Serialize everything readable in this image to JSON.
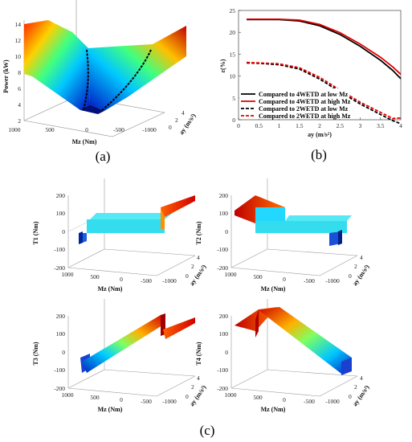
{
  "panel_labels": {
    "a": "(a)",
    "b": "(b)",
    "c": "(c)"
  },
  "chart_data": [
    {
      "id": "a",
      "type": "surface",
      "zlabel": "Power (kW)",
      "xlabel": "Mz (Nm)",
      "ylabel": "ay (m/s²)",
      "zticks": [
        "14",
        "12",
        "10",
        "8",
        "6",
        "4",
        "2"
      ],
      "xticks": [
        "1000",
        "500",
        "0",
        "-500",
        "-1000"
      ],
      "yticks": [
        "0",
        "2",
        "4"
      ],
      "zlim": [
        2,
        14
      ],
      "xlim": [
        1000,
        -1000
      ],
      "ylim": [
        0,
        4
      ],
      "colormap": "jet",
      "notes": "surface with black dashed optimal curves at 0 and -500"
    },
    {
      "id": "b",
      "type": "line",
      "ylabel": "ε(%)",
      "xlabel": "ay (m/s²)",
      "ylim": [
        0,
        25
      ],
      "xlim": [
        0,
        4
      ],
      "yticks": [
        0,
        5,
        10,
        15,
        20,
        25
      ],
      "xticks": [
        0,
        0.5,
        1,
        1.5,
        2,
        2.5,
        3,
        3.5,
        4
      ],
      "x": [
        0.2,
        0.5,
        1.0,
        1.5,
        2.0,
        2.5,
        3.0,
        3.5,
        3.8,
        4.0
      ],
      "series": [
        {
          "name": "Compared to 4WETD at low Mz",
          "color": "#000000",
          "dash": false,
          "values": [
            22.9,
            22.9,
            22.9,
            22.6,
            21.5,
            19.5,
            16.8,
            13.6,
            11.3,
            9.4
          ]
        },
        {
          "name": "Compared to 4WETD at high Mz",
          "color": "#e00000",
          "dash": false,
          "values": [
            23.0,
            23.0,
            23.0,
            22.8,
            21.8,
            19.9,
            17.3,
            14.3,
            12.1,
            10.4
          ]
        },
        {
          "name": "Compared to 2WETD at low Mz",
          "color": "#000000",
          "dash": true,
          "values": [
            13.0,
            12.9,
            12.6,
            11.6,
            9.3,
            6.4,
            3.6,
            1.2,
            -0.2,
            -0.9
          ]
        },
        {
          "name": "Compared to 2WETD at high Mz",
          "color": "#e00000",
          "dash": true,
          "values": [
            13.1,
            13.0,
            12.8,
            11.9,
            9.7,
            6.8,
            4.0,
            1.7,
            0.3,
            0.4
          ]
        }
      ],
      "legend_position": "bottom-left"
    },
    {
      "id": "c1",
      "type": "surface",
      "zlabel": "T1 (Nm)",
      "xlabel": "Mz (Nm)",
      "ylabel": "ay (m/s²)",
      "zticks": [
        "200",
        "100",
        "0",
        "-100",
        "-200"
      ],
      "xticks": [
        "1000",
        "500",
        "0",
        "-500",
        "-1000"
      ],
      "yticks": [
        "0",
        "2",
        "4"
      ]
    },
    {
      "id": "c2",
      "type": "surface",
      "zlabel": "T2 (Nm)",
      "xlabel": "Mz (Nm)",
      "ylabel": "ay (m/s²)",
      "zticks": [
        "200",
        "100",
        "0",
        "-100",
        "-200"
      ],
      "xticks": [
        "1000",
        "500",
        "0",
        "-500",
        "-1000"
      ],
      "yticks": [
        "0",
        "2",
        "4"
      ]
    },
    {
      "id": "c3",
      "type": "surface",
      "zlabel": "T3 (Nm)",
      "xlabel": "Mz (Nm)",
      "ylabel": "ay (m/s²)",
      "zticks": [
        "200",
        "100",
        "0",
        "-100",
        "-200"
      ],
      "xticks": [
        "1000",
        "500",
        "0",
        "-500",
        "-1000"
      ],
      "yticks": [
        "0",
        "2",
        "4"
      ]
    },
    {
      "id": "c4",
      "type": "surface",
      "zlabel": "T4 (Nm)",
      "xlabel": "Mz (Nm)",
      "ylabel": "ay (m/s²)",
      "zticks": [
        "200",
        "100",
        "0",
        "-100",
        "-200"
      ],
      "xticks": [
        "1000",
        "500",
        "0",
        "-500",
        "-1000"
      ],
      "yticks": [
        "0",
        "2",
        "4"
      ]
    }
  ]
}
